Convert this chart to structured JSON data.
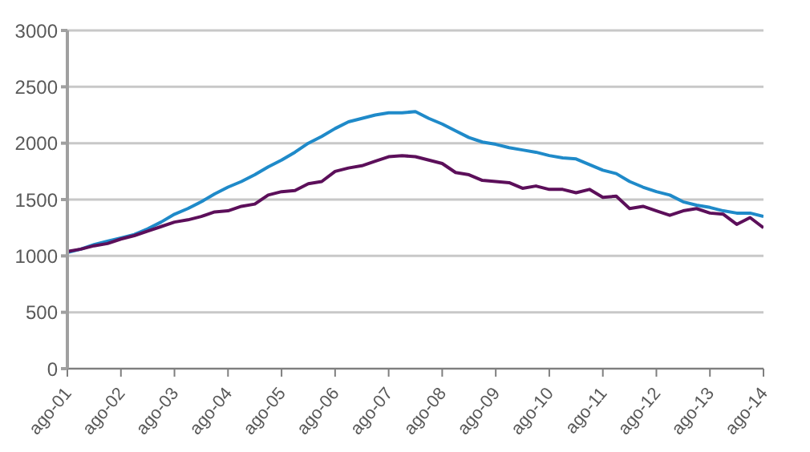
{
  "chart_data": {
    "type": "line",
    "x": [
      "2001-08",
      "2001-11",
      "2002-02",
      "2002-05",
      "2002-08",
      "2002-11",
      "2003-02",
      "2003-05",
      "2003-08",
      "2003-11",
      "2004-02",
      "2004-05",
      "2004-08",
      "2004-11",
      "2005-02",
      "2005-05",
      "2005-08",
      "2005-11",
      "2006-02",
      "2006-05",
      "2006-08",
      "2006-11",
      "2007-02",
      "2007-05",
      "2007-08",
      "2007-11",
      "2008-02",
      "2008-05",
      "2008-08",
      "2008-11",
      "2009-02",
      "2009-05",
      "2009-08",
      "2009-11",
      "2010-02",
      "2010-05",
      "2010-08",
      "2010-11",
      "2011-02",
      "2011-05",
      "2011-08",
      "2011-11",
      "2012-02",
      "2012-05",
      "2012-08",
      "2012-11",
      "2013-02",
      "2013-05",
      "2013-08",
      "2013-11",
      "2014-02",
      "2014-05",
      "2014-08"
    ],
    "series": [
      {
        "color": "#1f8ac9",
        "values": [
          1030,
          1060,
          1100,
          1130,
          1160,
          1190,
          1240,
          1300,
          1370,
          1420,
          1480,
          1550,
          1610,
          1660,
          1720,
          1790,
          1850,
          1920,
          2000,
          2060,
          2130,
          2190,
          2220,
          2250,
          2270,
          2270,
          2280,
          2220,
          2170,
          2110,
          2050,
          2010,
          1990,
          1960,
          1940,
          1920,
          1890,
          1870,
          1860,
          1810,
          1760,
          1730,
          1660,
          1610,
          1570,
          1540,
          1480,
          1450,
          1430,
          1400,
          1380,
          1380,
          1350
        ]
      },
      {
        "color": "#5c0f5a",
        "values": [
          1040,
          1060,
          1090,
          1110,
          1150,
          1180,
          1220,
          1260,
          1300,
          1320,
          1350,
          1390,
          1400,
          1440,
          1460,
          1540,
          1570,
          1580,
          1640,
          1660,
          1750,
          1780,
          1800,
          1840,
          1880,
          1890,
          1880,
          1850,
          1820,
          1740,
          1720,
          1670,
          1660,
          1650,
          1600,
          1620,
          1590,
          1590,
          1560,
          1590,
          1520,
          1530,
          1420,
          1440,
          1400,
          1360,
          1400,
          1420,
          1380,
          1370,
          1280,
          1340,
          1250
        ]
      }
    ],
    "xlim": [
      "2001-08",
      "2014-08"
    ],
    "xticks": [
      {
        "value": "2001-08",
        "label": "ago-01"
      },
      {
        "value": "2002-08",
        "label": "ago-02"
      },
      {
        "value": "2003-08",
        "label": "ago-03"
      },
      {
        "value": "2004-08",
        "label": "ago-04"
      },
      {
        "value": "2005-08",
        "label": "ago-05"
      },
      {
        "value": "2006-08",
        "label": "ago-06"
      },
      {
        "value": "2007-08",
        "label": "ago-07"
      },
      {
        "value": "2008-08",
        "label": "ago-08"
      },
      {
        "value": "2009-08",
        "label": "ago-09"
      },
      {
        "value": "2010-08",
        "label": "ago-10"
      },
      {
        "value": "2011-08",
        "label": "ago-11"
      },
      {
        "value": "2012-08",
        "label": "ago-12"
      },
      {
        "value": "2013-08",
        "label": "ago-13"
      },
      {
        "value": "2014-08",
        "label": "ago-14"
      }
    ],
    "ylim": [
      0,
      3000
    ],
    "yticks": [
      0,
      500,
      1000,
      1500,
      2000,
      2500,
      3000
    ],
    "grid": "y",
    "legend": false,
    "marker": "none",
    "line_style": "solid"
  }
}
